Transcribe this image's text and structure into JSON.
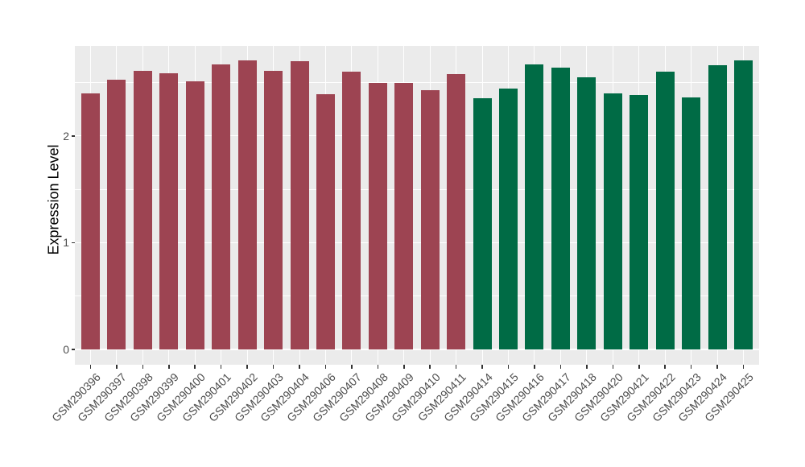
{
  "chart_data": {
    "type": "bar",
    "title": "",
    "xlabel": "",
    "ylabel": "Expression Level",
    "ylim": [
      0,
      2.85
    ],
    "yticks_major": [
      0,
      1,
      2
    ],
    "yticks_minor": [
      0.5,
      1.5,
      2.5
    ],
    "grid": "on",
    "legend_position": "none",
    "panel_background": "#EBEBEB",
    "grid_color": "#FFFFFF",
    "axis_text_color": "#4D4D4D",
    "tick_color": "#333333",
    "group_colors": {
      "group1": "#9D4452",
      "group2": "#006B45"
    },
    "categories": [
      "GSM290396",
      "GSM290397",
      "GSM290398",
      "GSM290399",
      "GSM290400",
      "GSM290401",
      "GSM290402",
      "GSM290403",
      "GSM290404",
      "GSM290406",
      "GSM290407",
      "GSM290408",
      "GSM290409",
      "GSM290410",
      "GSM290411",
      "GSM290414",
      "GSM290415",
      "GSM290416",
      "GSM290417",
      "GSM290418",
      "GSM290420",
      "GSM290421",
      "GSM290422",
      "GSM290423",
      "GSM290424",
      "GSM290425"
    ],
    "values": [
      2.4,
      2.53,
      2.61,
      2.59,
      2.51,
      2.67,
      2.71,
      2.61,
      2.7,
      2.39,
      2.6,
      2.5,
      2.5,
      2.43,
      2.58,
      2.35,
      2.44,
      2.67,
      2.64,
      2.55,
      2.4,
      2.38,
      2.6,
      2.36,
      2.66,
      2.71
    ],
    "bar_groups": [
      "group1",
      "group1",
      "group1",
      "group1",
      "group1",
      "group1",
      "group1",
      "group1",
      "group1",
      "group1",
      "group1",
      "group1",
      "group1",
      "group1",
      "group1",
      "group2",
      "group2",
      "group2",
      "group2",
      "group2",
      "group2",
      "group2",
      "group2",
      "group2",
      "group2",
      "group2"
    ]
  }
}
